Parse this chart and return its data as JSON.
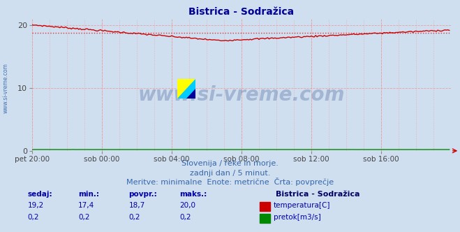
{
  "title": "Bistrica - Sodražica",
  "title_color": "#000099",
  "bg_color": "#d0dff0",
  "plot_bg_color": "#d0dff0",
  "grid_color": "#e8a0a0",
  "xlabel_ticks": [
    "pet 20:00",
    "sob 00:00",
    "sob 04:00",
    "sob 08:00",
    "sob 12:00",
    "sob 16:00"
  ],
  "ylabel_ticks": [
    0,
    10,
    20
  ],
  "ylim": [
    0,
    21
  ],
  "xlim": [
    0,
    288
  ],
  "temp_color": "#cc0000",
  "pretok_color": "#008800",
  "avg_line_color": "#dd3333",
  "avg_value": 18.7,
  "watermark_text": "www.si-vreme.com",
  "watermark_color": "#1a3a7a",
  "watermark_alpha": 0.25,
  "sidewatermark_color": "#3366aa",
  "footer_line1": "Slovenija / reke in morje.",
  "footer_line2": "zadnji dan / 5 minut.",
  "footer_line3": "Meritve: minimalne  Enote: metrične  Črta: povprečje",
  "footer_color": "#3366aa",
  "label_color": "#0000aa",
  "legend_station": "Bistrica - Sodražica",
  "legend_temp": "temperatura[C]",
  "legend_pretok": "pretok[m3/s]",
  "n_points": 288,
  "arrow_color": "#cc0000"
}
